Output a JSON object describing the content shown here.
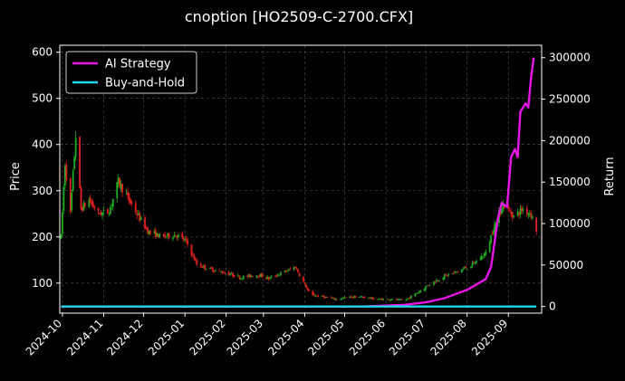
{
  "chart_data": {
    "type": "candlestick",
    "title": "cnoption [HO2509-C-2700.CFX]",
    "ylabel_left": "Price",
    "ylabel_right": "Return",
    "ylim_left": [
      35,
      615
    ],
    "ylim_right": [
      -8000,
      315000
    ],
    "xlim": [
      "2024-09-29",
      "2025-09-26"
    ],
    "x_ticks": [
      "2024-10",
      "2024-11",
      "2024-12",
      "2025-01",
      "2025-02",
      "2025-03",
      "2025-04",
      "2025-05",
      "2025-06",
      "2025-07",
      "2025-08",
      "2025-09"
    ],
    "y_ticks_left": [
      100,
      200,
      300,
      400,
      500,
      600
    ],
    "y_ticks_right": [
      0,
      50000,
      100000,
      150000,
      200000,
      250000,
      300000
    ],
    "grid": true,
    "legend_position": "top-left",
    "colors": {
      "up": "#1fae1f",
      "down": "#e0201c",
      "strategy": "#e815e8",
      "buyhold": "#21d6e8",
      "grid": "#555555"
    },
    "price_keypoints": [
      [
        "2024-09-30",
        200
      ],
      [
        "2024-10-03",
        360
      ],
      [
        "2024-10-07",
        250
      ],
      [
        "2024-10-11",
        420
      ],
      [
        "2024-10-15",
        260
      ],
      [
        "2024-10-21",
        280
      ],
      [
        "2024-10-28",
        250
      ],
      [
        "2024-11-05",
        255
      ],
      [
        "2024-11-12",
        320
      ],
      [
        "2024-11-20",
        280
      ],
      [
        "2024-11-28",
        240
      ],
      [
        "2024-12-05",
        210
      ],
      [
        "2024-12-15",
        200
      ],
      [
        "2024-12-25",
        205
      ],
      [
        "2025-01-02",
        190
      ],
      [
        "2025-01-10",
        140
      ],
      [
        "2025-01-20",
        130
      ],
      [
        "2025-02-01",
        122
      ],
      [
        "2025-02-12",
        112
      ],
      [
        "2025-02-25",
        118
      ],
      [
        "2025-03-05",
        110
      ],
      [
        "2025-03-15",
        122
      ],
      [
        "2025-03-25",
        135
      ],
      [
        "2025-04-05",
        75
      ],
      [
        "2025-04-15",
        70
      ],
      [
        "2025-04-25",
        65
      ],
      [
        "2025-05-05",
        70
      ],
      [
        "2025-05-15",
        70
      ],
      [
        "2025-05-25",
        65
      ],
      [
        "2025-06-05",
        65
      ],
      [
        "2025-06-15",
        62
      ],
      [
        "2025-06-25",
        80
      ],
      [
        "2025-07-05",
        100
      ],
      [
        "2025-07-15",
        115
      ],
      [
        "2025-07-25",
        125
      ],
      [
        "2025-08-05",
        140
      ],
      [
        "2025-08-15",
        165
      ],
      [
        "2025-08-22",
        230
      ],
      [
        "2025-08-28",
        270
      ],
      [
        "2025-09-05",
        245
      ],
      [
        "2025-09-12",
        260
      ],
      [
        "2025-09-18",
        250
      ],
      [
        "2025-09-22",
        215
      ]
    ],
    "series": [
      {
        "name": "AI Strategy",
        "points": [
          [
            "2024-09-30",
            0
          ],
          [
            "2025-05-15",
            0
          ],
          [
            "2025-06-15",
            2000
          ],
          [
            "2025-07-01",
            5000
          ],
          [
            "2025-07-15",
            10000
          ],
          [
            "2025-08-01",
            20000
          ],
          [
            "2025-08-15",
            33000
          ],
          [
            "2025-08-19",
            48000
          ],
          [
            "2025-08-21",
            70000
          ],
          [
            "2025-08-24",
            105000
          ],
          [
            "2025-08-27",
            125000
          ],
          [
            "2025-08-31",
            120000
          ],
          [
            "2025-09-03",
            180000
          ],
          [
            "2025-09-06",
            190000
          ],
          [
            "2025-09-08",
            180000
          ],
          [
            "2025-09-10",
            235000
          ],
          [
            "2025-09-14",
            245000
          ],
          [
            "2025-09-16",
            240000
          ],
          [
            "2025-09-18",
            275000
          ],
          [
            "2025-09-20",
            300000
          ]
        ]
      },
      {
        "name": "Buy-and-Hold",
        "points": [
          [
            "2024-09-30",
            0
          ],
          [
            "2025-09-22",
            0
          ]
        ]
      }
    ]
  }
}
